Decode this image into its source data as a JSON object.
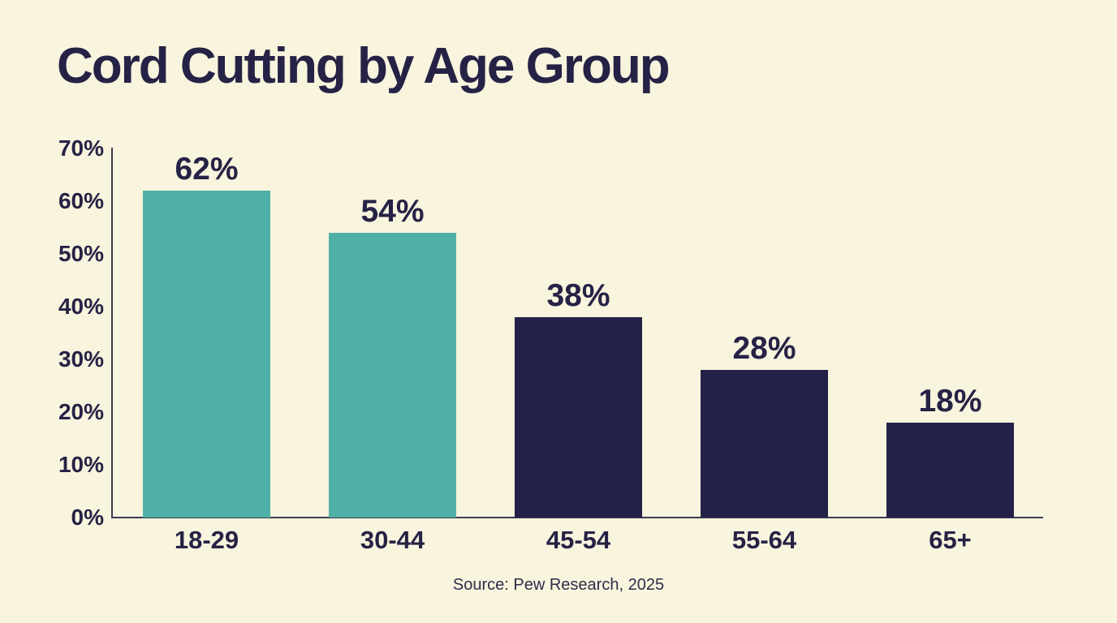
{
  "header": {
    "title": "Cord Cutting by Age Group"
  },
  "chart_data": {
    "type": "bar",
    "title": "Cord Cutting by Age Group",
    "categories": [
      "18-29",
      "30-44",
      "45-54",
      "55-64",
      "65+"
    ],
    "values": [
      62,
      54,
      38,
      28,
      18
    ],
    "value_labels": [
      "62%",
      "54%",
      "38%",
      "28%",
      "18%"
    ],
    "bar_colors": [
      "#4FB1A5",
      "#4FB1A5",
      "#242148",
      "#242148",
      "#242148"
    ],
    "xlabel": "",
    "ylabel": "",
    "ylim": [
      0,
      70
    ],
    "y_tick_step": 10,
    "y_tick_labels": [
      "0%",
      "10%",
      "20%",
      "30%",
      "40%",
      "50%",
      "60%",
      "70%"
    ],
    "grid": false,
    "legend": false,
    "annotation": "Source: Pew Research, 2025"
  },
  "footer": {
    "source": "Source: Pew Research, 2025"
  },
  "colors": {
    "background": "#F8F4DE",
    "teal": "#4FB1A5",
    "navy": "#242148",
    "text": "#262245",
    "axis": "#3C3C52"
  }
}
